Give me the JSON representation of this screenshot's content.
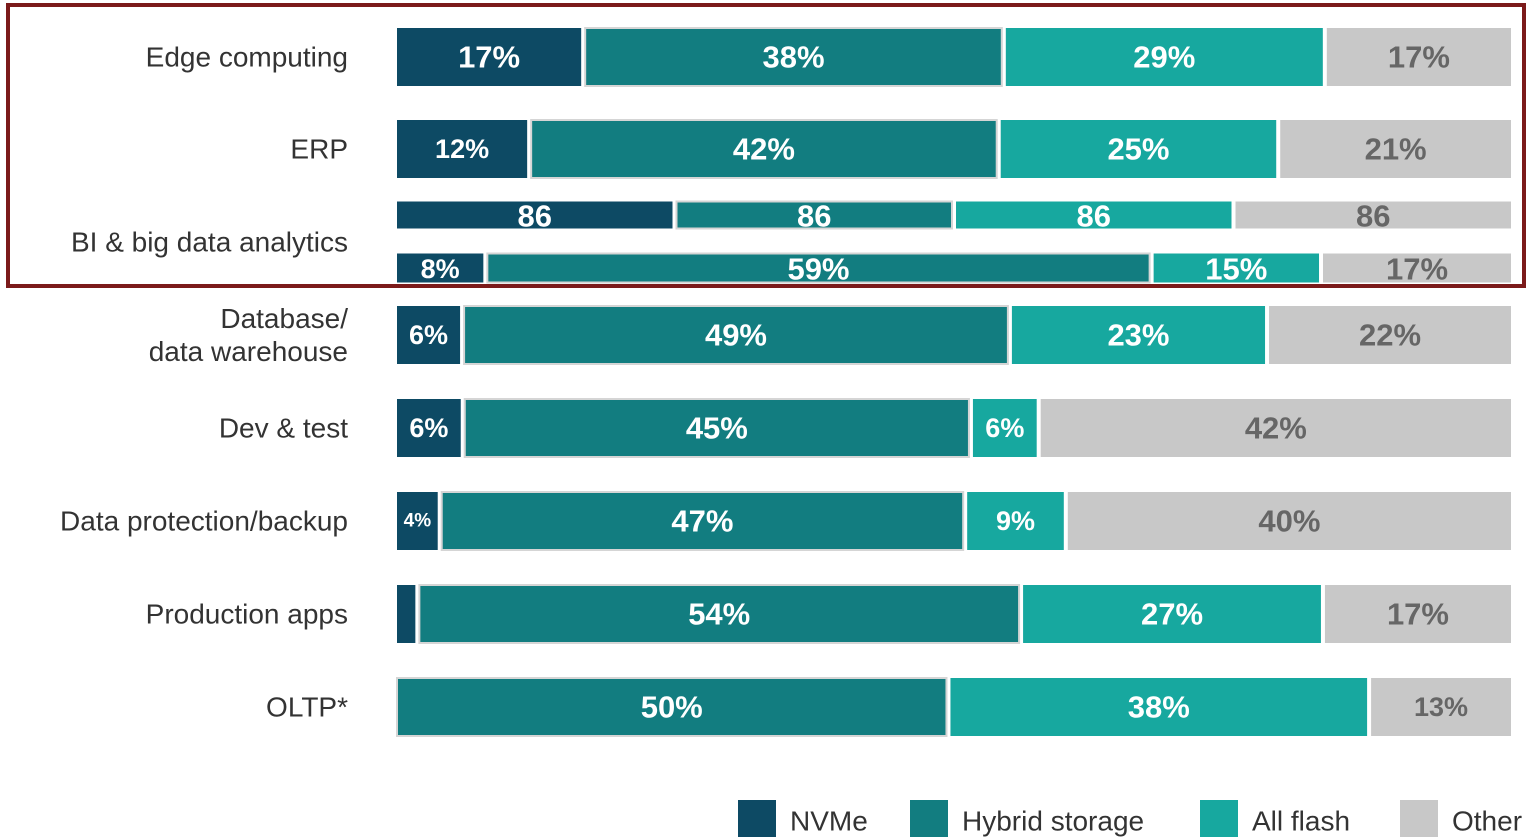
{
  "chart_data": {
    "type": "percent-stacked-bar",
    "categories": [
      "Edge computing",
      "ERP",
      null,
      "BI & big data analytics",
      "Database/\ndata warehouse",
      "Dev & test",
      "Data protection/backup",
      "Production apps",
      "OLTP*"
    ],
    "series": [
      {
        "name": "NVMe",
        "color": "#0d4a64",
        "values": [
          17,
          12,
          86,
          8,
          6,
          6,
          4,
          2,
          0
        ],
        "value_labels": [
          "17%",
          "12%",
          "86",
          "8%",
          "6%",
          "6%",
          "4%",
          null,
          null
        ]
      },
      {
        "name": "Hybrid storage",
        "color": "#127d80",
        "values": [
          38,
          42,
          86,
          59,
          49,
          45,
          47,
          54,
          50
        ],
        "value_labels": [
          "38%",
          "42%",
          "86",
          "59%",
          "49%",
          "45%",
          "47%",
          "54%",
          "50%"
        ]
      },
      {
        "name": "All flash",
        "color": "#17a89f",
        "values": [
          29,
          25,
          86,
          15,
          23,
          6,
          9,
          27,
          38
        ],
        "value_labels": [
          "29%",
          "25%",
          "86",
          "15%",
          "23%",
          "6%",
          "9%",
          "27%",
          "38%"
        ]
      },
      {
        "name": "Other",
        "color": "#c8c8c8",
        "values": [
          17,
          21,
          86,
          17,
          22,
          42,
          40,
          17,
          13
        ],
        "value_labels": [
          "17%",
          "21%",
          "86",
          "17%",
          "22%",
          "42%",
          "40%",
          "17%",
          "13%"
        ]
      }
    ]
  }
}
